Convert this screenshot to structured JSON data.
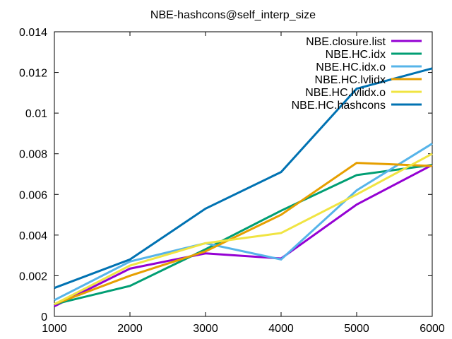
{
  "chart_data": {
    "type": "line",
    "title": "NBE-hashcons@self_interp_size",
    "xlabel": "",
    "ylabel": "",
    "x": [
      1000,
      2000,
      3000,
      4000,
      5000,
      6000
    ],
    "xlim": [
      1000,
      6000
    ],
    "ylim": [
      0,
      0.014
    ],
    "xticks": [
      1000,
      2000,
      3000,
      4000,
      5000,
      6000
    ],
    "xtick_labels": [
      "1000",
      "2000",
      "3000",
      "4000",
      "5000",
      "6000"
    ],
    "yticks": [
      0,
      0.002,
      0.004,
      0.006,
      0.008,
      0.01,
      0.012,
      0.014
    ],
    "ytick_labels": [
      "0",
      "0.002",
      "0.004",
      "0.006",
      "0.008",
      "0.01",
      "0.012",
      "0.014"
    ],
    "grid": false,
    "legend_position": "top-right",
    "series": [
      {
        "name": "NBE.closure.list",
        "color": "#9400d3",
        "values": [
          0.0005,
          0.00235,
          0.0031,
          0.00285,
          0.0055,
          0.00745
        ]
      },
      {
        "name": "NBE.HC.idx",
        "color": "#009e73",
        "values": [
          0.0006,
          0.0015,
          0.0033,
          0.0052,
          0.00695,
          0.00745
        ]
      },
      {
        "name": "NBE.HC.idx.o",
        "color": "#56b4e9",
        "values": [
          0.0008,
          0.0027,
          0.0036,
          0.0028,
          0.0062,
          0.0085
        ]
      },
      {
        "name": "NBE.HC.lvlidx",
        "color": "#e69f00",
        "values": [
          0.0006,
          0.002,
          0.0032,
          0.005,
          0.00755,
          0.0074
        ]
      },
      {
        "name": "NBE.HC.lvlidx.o",
        "color": "#f0e442",
        "values": [
          0.0006,
          0.0025,
          0.0036,
          0.0041,
          0.006,
          0.008
        ]
      },
      {
        "name": "NBE.HC.hashcons",
        "color": "#0072b2",
        "values": [
          0.0014,
          0.0028,
          0.0053,
          0.0071,
          0.0112,
          0.0122
        ]
      }
    ]
  }
}
